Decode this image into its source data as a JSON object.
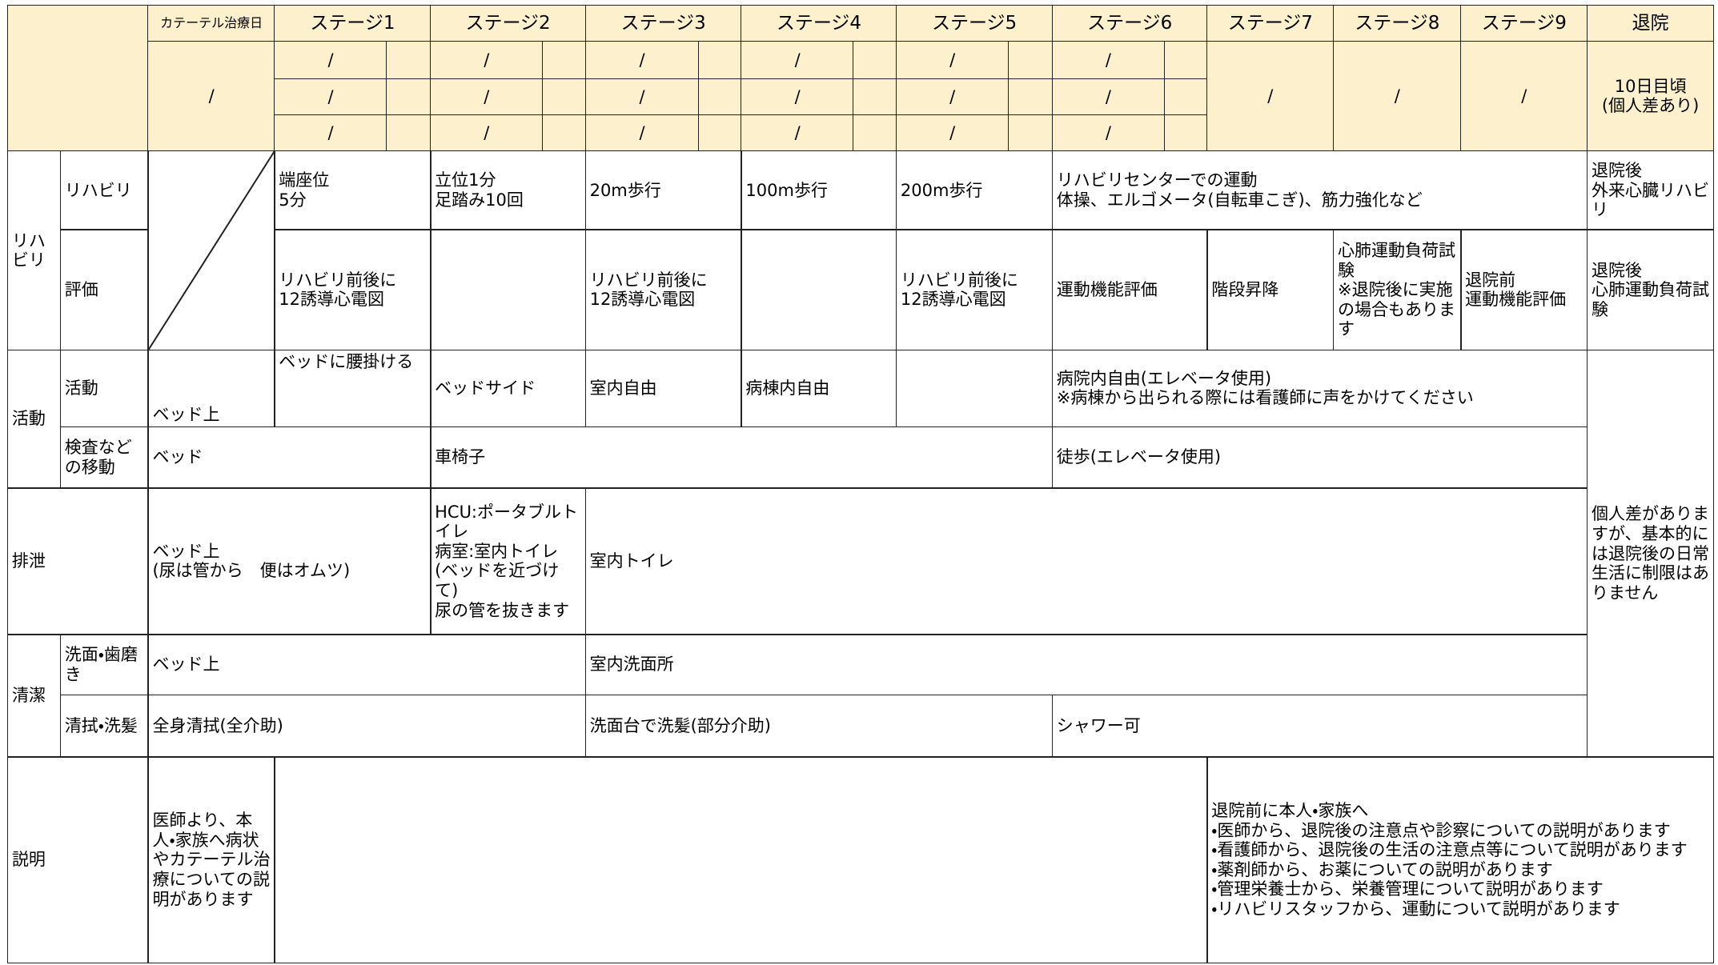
{
  "header": {
    "catheter_day": "カテーテル治療日",
    "stages": [
      "ステージ1",
      "ステージ2",
      "ステージ3",
      "ステージ4",
      "ステージ5",
      "ステージ6",
      "ステージ7",
      "ステージ8",
      "ステージ9"
    ],
    "discharge": "退院"
  },
  "schedule": {
    "catheter": "/",
    "stages": [
      [
        "/",
        "/",
        "/"
      ],
      [
        "/",
        "/",
        "/"
      ],
      [
        "/",
        "/",
        "/"
      ],
      [
        "/",
        "/",
        "/"
      ],
      [
        "/",
        "/",
        "/"
      ],
      [
        "/",
        "/",
        "/"
      ],
      [
        "/"
      ],
      [
        "/"
      ],
      [
        "/"
      ]
    ],
    "discharge": "10日目頃\n(個人差あり)"
  },
  "sections": [
    {
      "label": "リハビリ",
      "rows": [
        {
          "label": "リハビリ",
          "cells": [
            "端座位\n5分",
            "立位1分\n足踏み10回",
            "20m歩行",
            "100m歩行",
            "200m歩行",
            "リハビリセンターでの運動\n体操、エルゴメータ(自転車こぎ)、筋力強化など",
            "退院後\n外来心臓リハビリ"
          ]
        },
        {
          "label": "評価",
          "cells": [
            "リハビリ前後に\n12誘導心電図",
            "リハビリ前後に\n12誘導心電図",
            "リハビリ前後に\n12誘導心電図",
            "運動機能評価",
            "階段昇降",
            "心肺運動負荷試験\n※退院後に実施の場合もあります",
            "退院前\n運動機能評価",
            "退院後\n心肺運動負荷試験"
          ]
        }
      ]
    },
    {
      "label": "活動",
      "rows": [
        {
          "label": "活動",
          "cells": [
            "ベッド上",
            "ベッドに腰掛ける",
            "ベッドサイド",
            "室内自由",
            "病棟内自由",
            "病院内自由(エレベータ使用)\n※病棟から出られる際には看護師に声をかけてください"
          ]
        },
        {
          "label": "検査などの移動",
          "cells": [
            "ベッド",
            "車椅子",
            "徒歩(エレベータ使用)"
          ]
        }
      ]
    },
    {
      "label": "排泄",
      "cells": [
        "ベッド上\n(尿は管から　便はオムツ)",
        "HCU:ポータブルトイレ\n病室:室内トイレ\n(ベッドを近づけて)\n尿の管を抜きます",
        "室内トイレ"
      ]
    },
    {
      "label": "清潔",
      "rows": [
        {
          "label": "洗面・歯磨き",
          "cells": [
            "ベッド上",
            "室内洗面所"
          ]
        },
        {
          "label": "清拭・洗髪",
          "cells": [
            "全身清拭(全介助)",
            "洗面台で洗髪(部分介助)",
            "シャワー可"
          ]
        }
      ]
    },
    {
      "label": "説明",
      "cells": [
        "医師より、本人・家族へ病状やカテーテル治療についての説明があります",
        "退院前に本人・家族へ\n・医師から、退院後の注意点や診察についての説明があります\n・看護師から、退院後の生活の注意点等について説明があります\n・薬剤師から、お薬についての説明があります\n・管理栄養士から、栄養管理について説明があります\n・リハビリスタッフから、運動について説明があります"
      ]
    }
  ],
  "discharge_note": "個人差がありますが、基本的には退院後の日常生活に制限はありません"
}
